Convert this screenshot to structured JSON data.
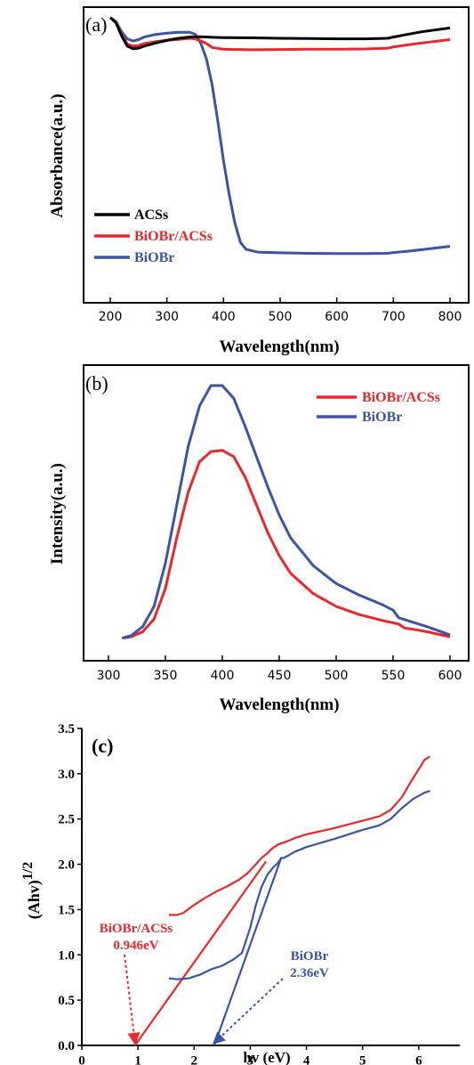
{
  "chart_data": [
    {
      "id": "a",
      "type": "line",
      "panel_label": "(a)",
      "xlabel": "Wavelength(nm)",
      "ylabel": "Absorbance(a.u.)",
      "xlim": [
        150,
        820
      ],
      "xticks": [
        200,
        300,
        400,
        500,
        600,
        700,
        800
      ],
      "ylim": [
        0,
        1
      ],
      "yticks_shown": false,
      "legend_position": "bottom-left",
      "series": [
        {
          "name": "ACSs",
          "color": "#000000",
          "x": [
            200,
            210,
            220,
            230,
            240,
            250,
            260,
            280,
            300,
            320,
            340,
            360,
            380,
            400,
            450,
            500,
            550,
            600,
            650,
            690,
            700,
            720,
            750,
            800
          ],
          "y": [
            0.96,
            0.94,
            0.89,
            0.85,
            0.84,
            0.842,
            0.85,
            0.862,
            0.872,
            0.88,
            0.885,
            0.886,
            0.884,
            0.883,
            0.882,
            0.88,
            0.879,
            0.878,
            0.878,
            0.88,
            0.885,
            0.893,
            0.905,
            0.92
          ]
        },
        {
          "name": "BiOBr/ACSs",
          "color": "#e8282b",
          "x": [
            200,
            210,
            220,
            230,
            240,
            250,
            260,
            280,
            300,
            320,
            340,
            350,
            360,
            370,
            380,
            400,
            450,
            500,
            550,
            600,
            650,
            690,
            700,
            720,
            750,
            800
          ],
          "y": [
            0.96,
            0.94,
            0.895,
            0.858,
            0.85,
            0.852,
            0.86,
            0.867,
            0.873,
            0.876,
            0.88,
            0.878,
            0.87,
            0.86,
            0.845,
            0.838,
            0.836,
            0.837,
            0.838,
            0.838,
            0.839,
            0.842,
            0.847,
            0.853,
            0.862,
            0.875
          ]
        },
        {
          "name": "BiOBr",
          "color": "#3b54a5",
          "x": [
            200,
            210,
            220,
            230,
            240,
            250,
            260,
            280,
            300,
            320,
            340,
            350,
            355,
            360,
            370,
            380,
            390,
            400,
            410,
            420,
            430,
            440,
            460,
            500,
            550,
            600,
            650,
            690,
            700,
            720,
            750,
            800
          ],
          "y": [
            0.96,
            0.945,
            0.905,
            0.878,
            0.87,
            0.875,
            0.885,
            0.895,
            0.9,
            0.903,
            0.903,
            0.896,
            0.88,
            0.86,
            0.8,
            0.7,
            0.56,
            0.41,
            0.28,
            0.17,
            0.095,
            0.068,
            0.058,
            0.055,
            0.053,
            0.052,
            0.052,
            0.053,
            0.056,
            0.06,
            0.067,
            0.08
          ]
        }
      ]
    },
    {
      "id": "b",
      "type": "line",
      "panel_label": "(b)",
      "xlabel": "Wavelength(nm)",
      "ylabel": "Intensity(a.u.)",
      "xlim": [
        280,
        615
      ],
      "xticks": [
        300,
        350,
        400,
        450,
        500,
        550,
        600
      ],
      "ylim": [
        0,
        1
      ],
      "yticks_shown": false,
      "legend_position": "top-right",
      "series": [
        {
          "name": "BiOBr/ACSs",
          "color": "#e8282b",
          "x": [
            312,
            320,
            330,
            340,
            350,
            360,
            370,
            380,
            390,
            400,
            410,
            420,
            430,
            440,
            450,
            460,
            480,
            500,
            520,
            540,
            555,
            560,
            570,
            580,
            600
          ],
          "y": [
            0.005,
            0.01,
            0.03,
            0.08,
            0.2,
            0.4,
            0.58,
            0.7,
            0.74,
            0.745,
            0.72,
            0.64,
            0.53,
            0.42,
            0.33,
            0.26,
            0.18,
            0.13,
            0.098,
            0.075,
            0.06,
            0.045,
            0.038,
            0.03,
            0.01
          ]
        },
        {
          "name": "BiOBr",
          "color": "#3b54a5",
          "x": [
            312,
            320,
            330,
            340,
            350,
            360,
            370,
            380,
            390,
            400,
            410,
            420,
            430,
            440,
            450,
            460,
            480,
            500,
            520,
            540,
            550,
            555,
            560,
            580,
            600
          ],
          "y": [
            0.005,
            0.015,
            0.05,
            0.13,
            0.3,
            0.53,
            0.76,
            0.92,
            1.0,
            1.0,
            0.95,
            0.84,
            0.72,
            0.6,
            0.49,
            0.4,
            0.29,
            0.22,
            0.175,
            0.138,
            0.115,
            0.085,
            0.078,
            0.05,
            0.018
          ]
        }
      ]
    },
    {
      "id": "c",
      "type": "line",
      "panel_label": "(c)",
      "xlabel": "hv (eV)",
      "ylabel": "(Ahv)",
      "ylabel_superscript": "1/2",
      "xlim": [
        0,
        7
      ],
      "xticks": [
        0,
        1,
        2,
        3,
        4,
        5,
        6
      ],
      "ylim": [
        0.0,
        3.5
      ],
      "yticks": [
        0.0,
        0.5,
        1.0,
        1.5,
        2.0,
        2.5,
        3.0,
        3.5
      ],
      "series": [
        {
          "name": "BiOBr/ACSs",
          "color": "#e8282b",
          "x": [
            1.55,
            1.7,
            1.8,
            2.0,
            2.2,
            2.4,
            2.6,
            2.8,
            2.95,
            3.1,
            3.2,
            3.3,
            3.4,
            3.5,
            3.6,
            3.8,
            4.0,
            4.5,
            5.0,
            5.3,
            5.5,
            5.7,
            5.85,
            6.0,
            6.1,
            6.2
          ],
          "y": [
            1.44,
            1.44,
            1.46,
            1.55,
            1.63,
            1.7,
            1.76,
            1.83,
            1.9,
            2.0,
            2.07,
            2.12,
            2.18,
            2.22,
            2.24,
            2.29,
            2.33,
            2.4,
            2.48,
            2.53,
            2.6,
            2.74,
            2.9,
            3.05,
            3.15,
            3.19
          ]
        },
        {
          "name": "BiOBr",
          "color": "#3b54a5",
          "x": [
            1.55,
            1.7,
            1.9,
            2.1,
            2.3,
            2.5,
            2.7,
            2.85,
            3.0,
            3.1,
            3.2,
            3.3,
            3.4,
            3.5,
            3.55,
            3.6,
            3.8,
            4.0,
            4.5,
            5.0,
            5.3,
            5.5,
            5.7,
            5.9,
            6.1,
            6.2
          ],
          "y": [
            0.74,
            0.73,
            0.74,
            0.78,
            0.84,
            0.88,
            0.95,
            1.02,
            1.3,
            1.55,
            1.75,
            1.88,
            1.96,
            2.02,
            2.07,
            2.07,
            2.14,
            2.19,
            2.28,
            2.38,
            2.43,
            2.5,
            2.62,
            2.72,
            2.79,
            2.81
          ]
        }
      ],
      "tangents": [
        {
          "series": "BiOBr/ACSs",
          "color": "#e8282b",
          "x": [
            0.946,
            3.28
          ],
          "y": [
            0.0,
            2.03
          ]
        },
        {
          "series": "BiOBr",
          "color": "#3b54a5",
          "x": [
            2.36,
            3.55
          ],
          "y": [
            0.0,
            2.07
          ]
        }
      ],
      "annotations": [
        {
          "series": "BiOBr/ACSs",
          "color": "#e8282b",
          "lines": [
            "BiOBr/ACSs",
            "0.946eV"
          ],
          "arrow_to": [
            0.946,
            0.0
          ]
        },
        {
          "series": "BiOBr",
          "color": "#3b54a5",
          "lines": [
            "BiOBr",
            "2.36eV"
          ],
          "arrow_to": [
            2.36,
            0.0
          ]
        }
      ]
    }
  ]
}
